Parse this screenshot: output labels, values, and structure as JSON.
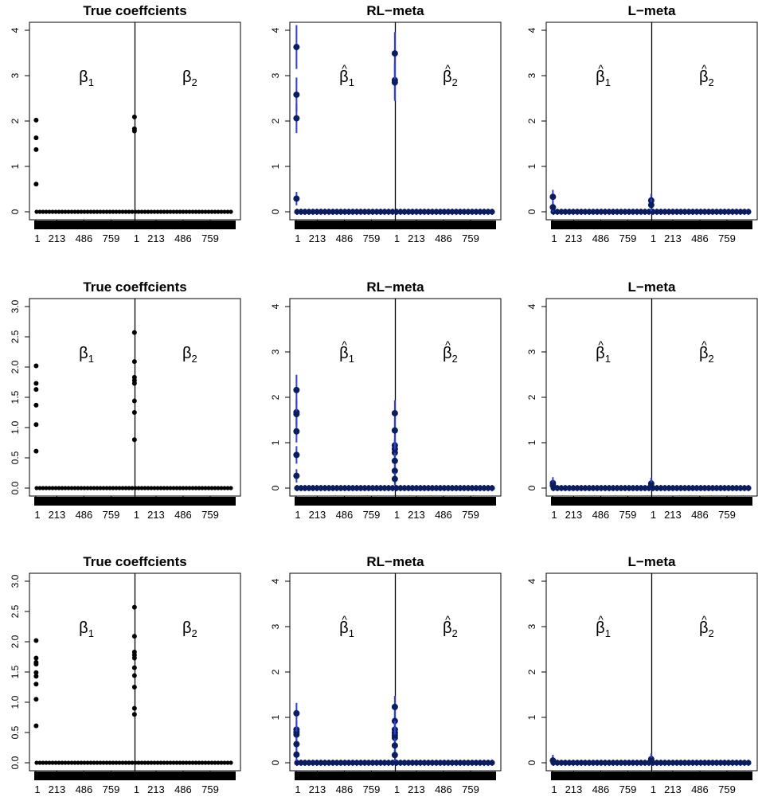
{
  "chart_data": [
    {
      "panel": 1,
      "type": "scatter",
      "title": "True coeffcients",
      "ylim": [
        0,
        4
      ],
      "yticks": [
        "0",
        "1",
        "2",
        "3",
        "4"
      ],
      "xticks": [
        "1",
        "213",
        "486",
        "759",
        "1",
        "213",
        "486",
        "759"
      ],
      "labels": [
        "β",
        "β"
      ],
      "subscripts": [
        "1",
        "2"
      ],
      "hat": false,
      "bars": false,
      "beta1": [
        2.02,
        1.63,
        1.37,
        0.61
      ],
      "beta2": [
        2.09,
        1.83,
        1.78
      ],
      "n": 1000
    },
    {
      "panel": 2,
      "type": "scatter",
      "title": "RL−meta",
      "ylim": [
        0,
        4
      ],
      "yticks": [
        "0",
        "1",
        "2",
        "3",
        "4"
      ],
      "xticks": [
        "1",
        "213",
        "486",
        "759",
        "1",
        "213",
        "486",
        "759"
      ],
      "labels": [
        "β",
        "β"
      ],
      "subscripts": [
        "1",
        "2"
      ],
      "hat": true,
      "bars": true,
      "beta1": [
        3.63,
        2.58,
        2.06,
        0.29
      ],
      "beta2": [
        3.49,
        2.9,
        2.85
      ],
      "n": 1000
    },
    {
      "panel": 3,
      "type": "scatter",
      "title": "L−meta",
      "ylim": [
        0,
        4
      ],
      "yticks": [
        "0",
        "1",
        "2",
        "3",
        "4"
      ],
      "xticks": [
        "1",
        "213",
        "486",
        "759",
        "1",
        "213",
        "486",
        "759"
      ],
      "labels": [
        "β",
        "β"
      ],
      "subscripts": [
        "1",
        "2"
      ],
      "hat": true,
      "bars": true,
      "beta1": [
        0.33,
        0.1
      ],
      "beta2": [
        0.25,
        0.15
      ],
      "n": 1000
    },
    {
      "panel": 4,
      "type": "scatter",
      "title": "True coeffcients",
      "ylim": [
        0,
        3
      ],
      "yticks": [
        "0.0",
        "0.5",
        "1.0",
        "1.5",
        "2.0",
        "2.5",
        "3.0"
      ],
      "xticks": [
        "1",
        "213",
        "486",
        "759",
        "1",
        "213",
        "486",
        "759"
      ],
      "labels": [
        "β",
        "β"
      ],
      "subscripts": [
        "1",
        "2"
      ],
      "hat": false,
      "bars": false,
      "beta1": [
        2.02,
        1.73,
        1.63,
        1.37,
        1.05,
        0.61
      ],
      "beta2": [
        2.57,
        2.09,
        1.83,
        1.78,
        1.73,
        1.44,
        1.25,
        0.8
      ],
      "n": 1000
    },
    {
      "panel": 5,
      "type": "scatter",
      "title": "RL−meta",
      "ylim": [
        0,
        4
      ],
      "yticks": [
        "0",
        "1",
        "2",
        "3",
        "4"
      ],
      "xticks": [
        "1",
        "213",
        "486",
        "759",
        "1",
        "213",
        "486",
        "759"
      ],
      "labels": [
        "β",
        "β"
      ],
      "subscripts": [
        "1",
        "2"
      ],
      "hat": true,
      "bars": true,
      "beta1": [
        2.16,
        1.67,
        1.63,
        1.25,
        0.73,
        0.27
      ],
      "beta2": [
        1.65,
        1.27,
        0.94,
        0.86,
        0.78,
        0.6,
        0.38,
        0.2
      ],
      "n": 1000
    },
    {
      "panel": 6,
      "type": "scatter",
      "title": "L−meta",
      "ylim": [
        0,
        4
      ],
      "yticks": [
        "0",
        "1",
        "2",
        "3",
        "4"
      ],
      "xticks": [
        "1",
        "213",
        "486",
        "759",
        "1",
        "213",
        "486",
        "759"
      ],
      "labels": [
        "β",
        "β"
      ],
      "subscripts": [
        "1",
        "2"
      ],
      "hat": true,
      "bars": true,
      "beta1": [
        0.11,
        0.06
      ],
      "beta2": [
        0.1,
        0.05
      ],
      "n": 1000
    },
    {
      "panel": 7,
      "type": "scatter",
      "title": "True coeffcients",
      "ylim": [
        0,
        3
      ],
      "yticks": [
        "0.0",
        "0.5",
        "1.0",
        "1.5",
        "2.0",
        "2.5",
        "3.0"
      ],
      "xticks": [
        "1",
        "213",
        "486",
        "759",
        "1",
        "213",
        "486",
        "759"
      ],
      "labels": [
        "β",
        "β"
      ],
      "subscripts": [
        "1",
        "2"
      ],
      "hat": false,
      "bars": false,
      "beta1": [
        2.02,
        1.73,
        1.66,
        1.63,
        1.49,
        1.43,
        1.3,
        1.05,
        0.61
      ],
      "beta2": [
        2.57,
        2.09,
        1.83,
        1.78,
        1.73,
        1.57,
        1.44,
        1.25,
        0.9,
        0.8
      ],
      "n": 1000
    },
    {
      "panel": 8,
      "type": "scatter",
      "title": "RL−meta",
      "ylim": [
        0,
        4
      ],
      "yticks": [
        "0",
        "1",
        "2",
        "3",
        "4"
      ],
      "xticks": [
        "1",
        "213",
        "486",
        "759",
        "1",
        "213",
        "486",
        "759"
      ],
      "labels": [
        "β",
        "β"
      ],
      "subscripts": [
        "1",
        "2"
      ],
      "hat": true,
      "bars": true,
      "beta1": [
        1.09,
        0.73,
        0.67,
        0.62,
        0.41,
        0.18
      ],
      "beta2": [
        1.23,
        0.92,
        0.73,
        0.66,
        0.6,
        0.55,
        0.38,
        0.17
      ],
      "n": 1000
    },
    {
      "panel": 9,
      "type": "scatter",
      "title": "L−meta",
      "ylim": [
        0,
        4
      ],
      "yticks": [
        "0",
        "1",
        "2",
        "3",
        "4"
      ],
      "xticks": [
        "1",
        "213",
        "486",
        "759",
        "1",
        "213",
        "486",
        "759"
      ],
      "labels": [
        "β",
        "β"
      ],
      "subscripts": [
        "1",
        "2"
      ],
      "hat": true,
      "bars": true,
      "beta1": [
        0.05
      ],
      "beta2": [
        0.08,
        0.04
      ],
      "n": 1000
    }
  ]
}
